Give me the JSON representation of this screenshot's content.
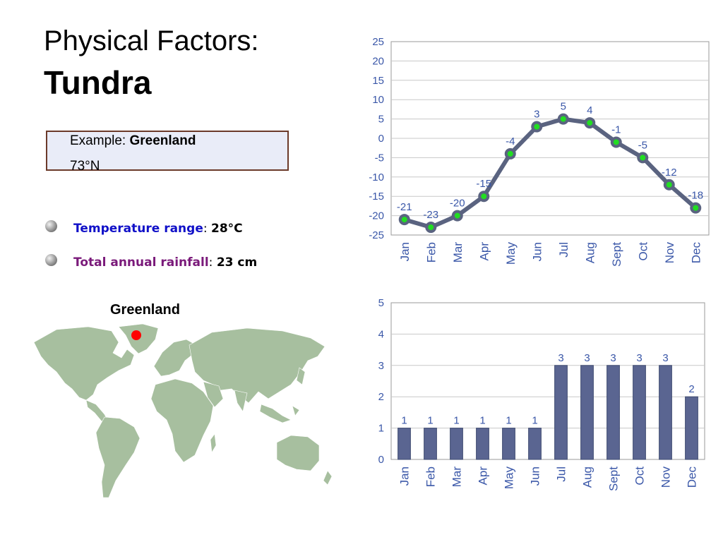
{
  "title": {
    "line1": "Physical Factors:",
    "line2": "Tundra"
  },
  "example": {
    "label": "Example: ",
    "place": "Greenland",
    "latitude": "73°N"
  },
  "bullets": [
    {
      "label": "Temperature range",
      "sep": ": ",
      "value": "28°C",
      "label_color": "#1010c8"
    },
    {
      "label": "Total annual rainfall",
      "sep": ": ",
      "value": "23 cm",
      "label_color": "#7a1a7a"
    }
  ],
  "map": {
    "label": "Greenland",
    "land_color": "#a7bf9f",
    "marker_color": "#ff0000"
  },
  "chart_data": [
    {
      "type": "line",
      "categories": [
        "Jan",
        "Feb",
        "Mar",
        "Apr",
        "May",
        "Jun",
        "Jul",
        "Aug",
        "Sept",
        "Oct",
        "Nov",
        "Dec"
      ],
      "values": [
        -21,
        -23,
        -20,
        -15,
        -4,
        3,
        5,
        4,
        -1,
        -5,
        -12,
        -18
      ],
      "data_labels": [
        "-21",
        "-23",
        "-20",
        "-15",
        "-4",
        "3",
        "5",
        "4",
        "-1",
        "-5",
        "-12",
        "-18"
      ],
      "title": "",
      "xlabel": "",
      "ylabel": "",
      "ylim": [
        -25,
        25
      ],
      "yticks": [
        "25",
        "20",
        "15",
        "10",
        "5",
        "0",
        "-5",
        "-10",
        "-15",
        "-20",
        "-25"
      ],
      "grid": true,
      "line_color": "#5a6380",
      "marker_color": "#22dd22"
    },
    {
      "type": "bar",
      "categories": [
        "Jan",
        "Feb",
        "Mar",
        "Apr",
        "May",
        "Jun",
        "Jul",
        "Aug",
        "Sept",
        "Oct",
        "Nov",
        "Dec"
      ],
      "values": [
        1,
        1,
        1,
        1,
        1,
        1,
        3,
        3,
        3,
        3,
        3,
        2
      ],
      "data_labels": [
        "1",
        "1",
        "1",
        "1",
        "1",
        "1",
        "3",
        "3",
        "3",
        "3",
        "3",
        "2"
      ],
      "title": "",
      "xlabel": "",
      "ylabel": "",
      "ylim": [
        0,
        5
      ],
      "yticks": [
        "5",
        "4",
        "3",
        "2",
        "1",
        "0"
      ],
      "grid": true,
      "bar_color": "#5a6591"
    }
  ]
}
